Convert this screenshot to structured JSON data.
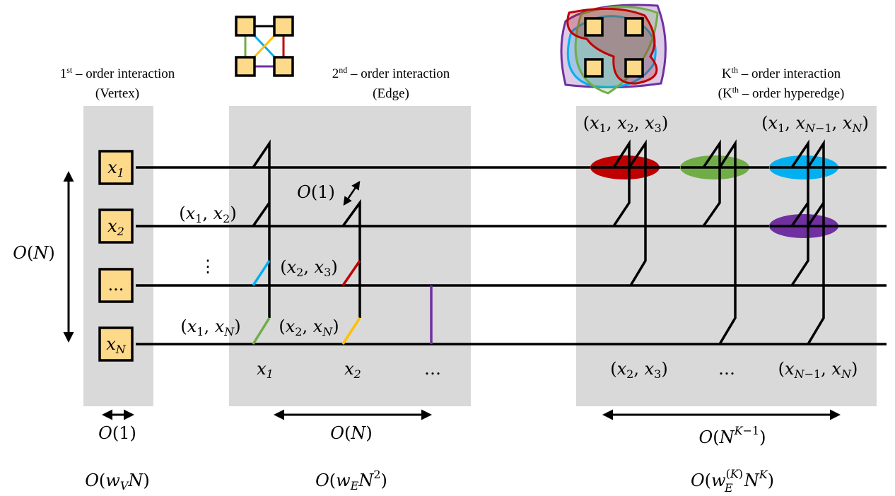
{
  "columns": {
    "vertex": {
      "title_sup_base": "1",
      "title_sup": "st",
      "title_rest": " – order interaction",
      "subtitle": "(Vertex)",
      "width_cost": "O(1)",
      "total_cost": "O(w_V N)"
    },
    "edge": {
      "title_sup_base": "2",
      "title_sup": "nd",
      "title_rest": " – order interaction",
      "subtitle": "(Edge)",
      "width_cost": "O(N)",
      "total_cost": "O(w_E N^2)"
    },
    "hyperedge": {
      "title_sup_base": "K",
      "title_sup": "th",
      "title_rest": " – order interaction",
      "subtitle_sup_base": "(K",
      "subtitle_sup": "th",
      "subtitle_rest": " – order hyperedge)",
      "width_cost": "O(N^{K-1})",
      "total_cost": "O(w_E^{(K)} N^K)"
    }
  },
  "nodes": [
    "x1",
    "x2",
    "...",
    "xN"
  ],
  "vertical_cost": "O(N)",
  "edge_labels": {
    "x1x2": "(x1, x2)",
    "x2x3": "(x2, x3)",
    "x1xN": "(x1, xN)",
    "x2xN": "(x2, xN)",
    "local": "O(1)"
  },
  "edge_bottom_labels": [
    "x1",
    "x2",
    "…"
  ],
  "hyper_top_labels": [
    "(x1, x2, x3)",
    "(x1, xN-1, xN)"
  ],
  "hyper_bottom_labels": [
    "(x2, x3)",
    "…",
    "(xN-1, xN)"
  ],
  "colors": {
    "panel": "#d9d9d9",
    "node_fill": "#fdd98a",
    "red": "#c00000",
    "green": "#70ad47",
    "blue": "#00b0f0",
    "purple": "#7030a0",
    "yellow": "#ffc000"
  }
}
